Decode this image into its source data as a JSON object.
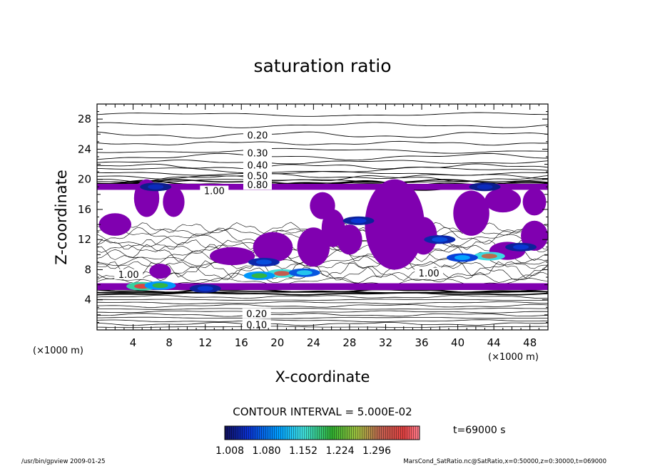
{
  "title": "saturation ratio",
  "footer": {
    "left": "/usr/bin/gpview  2009-01-25",
    "right": "MarsCond_SatRatio.nc@SatRatio,x=0:50000,z=0:30000,t=069000"
  },
  "chart_data": {
    "type": "heatmap",
    "title": "saturation ratio",
    "xlabel": "X-coordinate",
    "ylabel": "Z-coordinate",
    "x_unit": "(×1000 m)",
    "y_unit": "(×1000 m)",
    "xlim": [
      0,
      50
    ],
    "ylim": [
      0,
      30
    ],
    "x_ticks": [
      4,
      8,
      12,
      16,
      20,
      24,
      28,
      32,
      36,
      40,
      44,
      48
    ],
    "y_ticks": [
      4,
      8,
      12,
      16,
      20,
      24,
      28
    ],
    "contour_interval_label": "CONTOUR INTERVAL = 5.000E-02",
    "time_label": "t=69000 s",
    "colorbar": {
      "min": 1.008,
      "max": 1.33,
      "tick_labels": [
        "1.008",
        "1.080",
        "1.152",
        "1.224",
        "1.296"
      ],
      "undercolor": "#8000b0"
    },
    "contour_labels": [
      {
        "text": "0.20",
        "x": 17.8,
        "y": 25.8
      },
      {
        "text": "0.30",
        "x": 17.8,
        "y": 23.4
      },
      {
        "text": "0.40",
        "x": 17.8,
        "y": 21.8
      },
      {
        "text": "0.50",
        "x": 17.8,
        "y": 20.4
      },
      {
        "text": "0.80",
        "x": 17.8,
        "y": 19.2
      },
      {
        "text": "1.00",
        "x": 13.0,
        "y": 18.4
      },
      {
        "text": "1.00",
        "x": 3.5,
        "y": 7.3
      },
      {
        "text": "1.00",
        "x": 36.8,
        "y": 7.5
      },
      {
        "text": "0.20",
        "x": 17.7,
        "y": 2.1
      },
      {
        "text": "0.10",
        "x": 17.7,
        "y": 0.6
      }
    ],
    "supersaturated_regions": [
      {
        "cx": 5.5,
        "cy": 17.5,
        "rx": 1.4,
        "ry": 2.5
      },
      {
        "cx": 8.5,
        "cy": 17.0,
        "rx": 1.2,
        "ry": 2.0
      },
      {
        "cx": 2.0,
        "cy": 14.0,
        "rx": 1.8,
        "ry": 1.5
      },
      {
        "cx": 19.5,
        "cy": 11.0,
        "rx": 2.2,
        "ry": 2.0
      },
      {
        "cx": 15.0,
        "cy": 9.8,
        "rx": 2.5,
        "ry": 1.2
      },
      {
        "cx": 24.0,
        "cy": 11.0,
        "rx": 1.8,
        "ry": 2.6
      },
      {
        "cx": 26.2,
        "cy": 13.5,
        "rx": 1.3,
        "ry": 2.5
      },
      {
        "cx": 25.0,
        "cy": 16.5,
        "rx": 1.4,
        "ry": 1.8
      },
      {
        "cx": 28.0,
        "cy": 12.0,
        "rx": 1.4,
        "ry": 2.0
      },
      {
        "cx": 33.0,
        "cy": 14.0,
        "rx": 3.3,
        "ry": 6.0
      },
      {
        "cx": 36.2,
        "cy": 12.5,
        "rx": 1.5,
        "ry": 2.5
      },
      {
        "cx": 41.5,
        "cy": 15.5,
        "rx": 2.0,
        "ry": 3.0
      },
      {
        "cx": 45.0,
        "cy": 17.2,
        "rx": 2.0,
        "ry": 1.6
      },
      {
        "cx": 48.5,
        "cy": 12.5,
        "rx": 1.5,
        "ry": 2.0
      },
      {
        "cx": 48.5,
        "cy": 17.0,
        "rx": 1.3,
        "ry": 1.8
      },
      {
        "cx": 7.0,
        "cy": 7.8,
        "rx": 1.2,
        "ry": 1.0
      },
      {
        "cx": 45.5,
        "cy": 10.5,
        "rx": 2.0,
        "ry": 1.2
      }
    ],
    "hotspots": [
      {
        "x": 5.0,
        "y": 5.8,
        "value": 1.3
      },
      {
        "x": 7.0,
        "y": 5.9,
        "value": 1.18
      },
      {
        "x": 20.5,
        "y": 7.5,
        "value": 1.27
      },
      {
        "x": 18.0,
        "y": 7.2,
        "value": 1.18
      },
      {
        "x": 23.0,
        "y": 7.6,
        "value": 1.12
      },
      {
        "x": 43.5,
        "y": 9.8,
        "value": 1.26
      },
      {
        "x": 40.5,
        "y": 9.6,
        "value": 1.1
      },
      {
        "x": 18.5,
        "y": 9.0,
        "value": 1.06
      },
      {
        "x": 29.0,
        "y": 14.5,
        "value": 1.05
      },
      {
        "x": 38.0,
        "y": 12.0,
        "value": 1.06
      },
      {
        "x": 47.0,
        "y": 11.0,
        "value": 1.05
      },
      {
        "x": 6.5,
        "y": 19.0,
        "value": 1.04
      },
      {
        "x": 43.0,
        "y": 19.0,
        "value": 1.04
      },
      {
        "x": 12.0,
        "y": 5.5,
        "value": 1.05
      }
    ]
  }
}
